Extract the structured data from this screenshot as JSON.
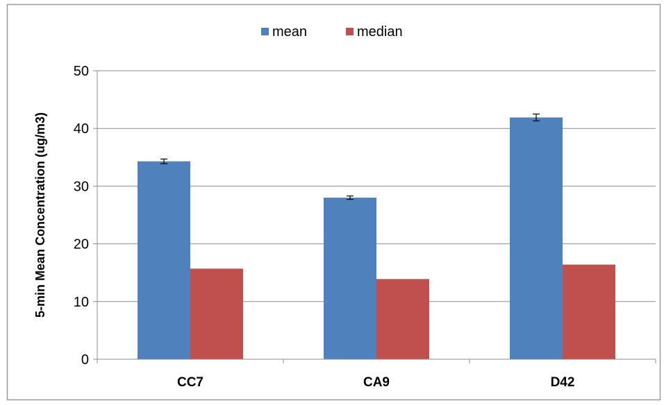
{
  "chart_data": {
    "type": "bar",
    "title": "",
    "xlabel": "",
    "ylabel": "5-min Mean Concentration (ug/m3)",
    "categories": [
      "CC7",
      "CA9",
      "D42"
    ],
    "series": [
      {
        "name": "mean",
        "values": [
          34.3,
          28.0,
          41.9
        ],
        "error": [
          0.4,
          0.3,
          0.6
        ],
        "color": "#4F81BD"
      },
      {
        "name": "median",
        "values": [
          15.7,
          13.9,
          16.4
        ],
        "color": "#C0504D"
      }
    ],
    "ylim": [
      0,
      50
    ],
    "yticks": [
      "0",
      "10",
      "20",
      "30",
      "40",
      "50"
    ],
    "grid": true,
    "legend_position": "top-center"
  }
}
